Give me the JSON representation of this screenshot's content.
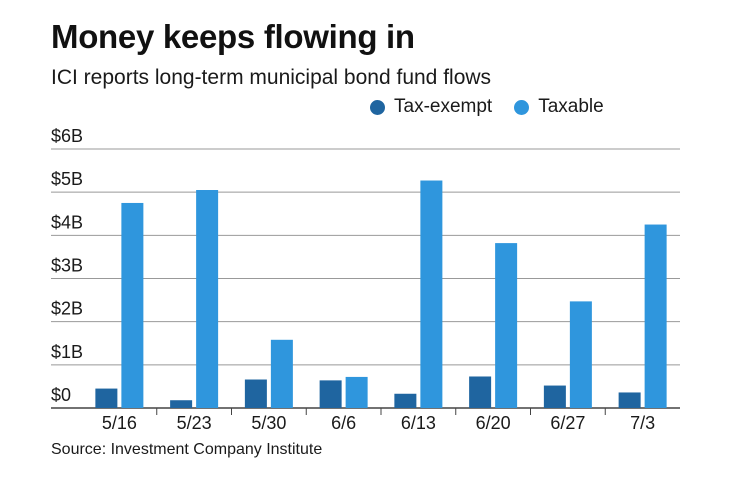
{
  "header": {
    "title": "Money keeps flowing in",
    "subtitle": "ICI reports long-term municipal bond fund flows"
  },
  "footer": {
    "source": "Source: Investment Company Institute"
  },
  "colors": {
    "tax_exempt": "#1f65a0",
    "taxable": "#2f96dd",
    "grid": "#999999",
    "axis": "#444444"
  },
  "chart_data": {
    "type": "bar",
    "title": "Money keeps flowing in",
    "subtitle": "ICI reports long-term municipal bond fund flows",
    "xlabel": "",
    "ylabel": "",
    "ylim": [
      0,
      6
    ],
    "yticks": [
      0,
      1,
      2,
      3,
      4,
      5,
      6
    ],
    "ytick_labels": [
      "$0",
      "$1B",
      "$2B",
      "$3B",
      "$4B",
      "$5B",
      "$6B"
    ],
    "grid": true,
    "legend_position": "top-right",
    "categories": [
      "5/16",
      "5/23",
      "5/30",
      "6/6",
      "6/13",
      "6/20",
      "6/27",
      "7/3"
    ],
    "series": [
      {
        "name": "Tax-exempt",
        "values": [
          0.45,
          0.18,
          0.66,
          0.64,
          0.33,
          0.73,
          0.52,
          0.36
        ]
      },
      {
        "name": "Taxable",
        "values": [
          4.75,
          5.05,
          1.58,
          0.72,
          5.27,
          3.82,
          2.47,
          4.25
        ]
      }
    ]
  }
}
